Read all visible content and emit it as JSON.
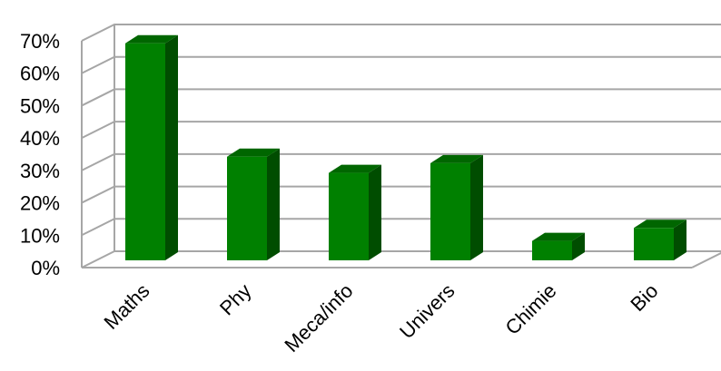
{
  "chart_data": {
    "type": "bar",
    "categories": [
      "Maths",
      "Phy",
      "Meca/info",
      "Univers",
      "Chimie",
      "Bio"
    ],
    "values": [
      67,
      32,
      27,
      30,
      6,
      10
    ],
    "ylim": [
      0,
      70
    ],
    "yticks": [
      "0%",
      "10%",
      "20%",
      "30%",
      "40%",
      "50%",
      "60%",
      "70%"
    ],
    "grid": true,
    "bar_color": "#008000",
    "bar_top_color": "#006600",
    "bar_side_color": "#004d00",
    "gridline_color": "#a6a6a6"
  }
}
